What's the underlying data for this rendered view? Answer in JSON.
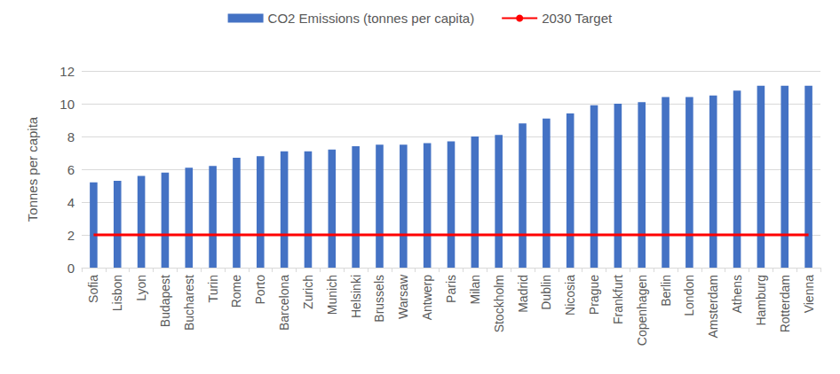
{
  "chart_data": {
    "type": "bar",
    "y_label": "Tonnes per capita",
    "categories": [
      "Sofia",
      "Lisbon",
      "Lyon",
      "Budapest",
      "Bucharest",
      "Turin",
      "Rome",
      "Porto",
      "Barcelona",
      "Zurich",
      "Munich",
      "Helsinki",
      "Brussels",
      "Warsaw",
      "Antwerp",
      "Paris",
      "Milan",
      "Stockholm",
      "Madrid",
      "Dublin",
      "Nicosia",
      "Prague",
      "Frankfurt",
      "Copenhagen",
      "Berlin",
      "London",
      "Amsterdam",
      "Athens",
      "Hamburg",
      "Rotterdam",
      "Vienna"
    ],
    "series": [
      {
        "name": "CO2 Emissions (tonnes per capita)",
        "type": "bar",
        "color": "#4472c4",
        "values": [
          5.2,
          5.3,
          5.6,
          5.8,
          6.1,
          6.2,
          6.7,
          6.8,
          7.1,
          7.1,
          7.2,
          7.4,
          7.5,
          7.5,
          7.6,
          7.7,
          8.0,
          8.1,
          8.8,
          9.1,
          9.4,
          9.9,
          10.0,
          10.1,
          10.4,
          10.4,
          10.5,
          10.8,
          11.1,
          11.1,
          11.1
        ]
      },
      {
        "name": "2030 Target",
        "type": "line",
        "color": "#ff0000",
        "marker": "none",
        "line_style": "solid",
        "values": [
          2,
          2,
          2,
          2,
          2,
          2,
          2,
          2,
          2,
          2,
          2,
          2,
          2,
          2,
          2,
          2,
          2,
          2,
          2,
          2,
          2,
          2,
          2,
          2,
          2,
          2,
          2,
          2,
          2,
          2,
          2
        ]
      }
    ],
    "ylim": [
      0,
      12
    ],
    "yticks": [
      0,
      2,
      4,
      6,
      8,
      10,
      12
    ],
    "grid": true,
    "legend": "top"
  }
}
